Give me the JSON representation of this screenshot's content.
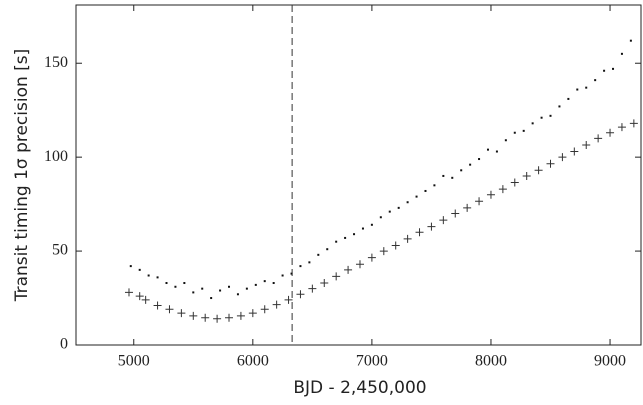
{
  "chart_data": {
    "type": "scatter",
    "xlabel": "BJD - 2,450,000",
    "ylabel": "Transit timing 1σ precision [s]",
    "xlim": [
      4515,
      9260
    ],
    "ylim": [
      0,
      181
    ],
    "xticks": [
      5000,
      6000,
      7000,
      8000,
      9000
    ],
    "yticks": [
      0,
      50,
      100,
      150
    ],
    "vline": 6330,
    "series": [
      {
        "marker": "dot",
        "color": "#111111",
        "x": [
          4975,
          5050,
          5125,
          5200,
          5275,
          5350,
          5425,
          5500,
          5575,
          5650,
          5725,
          5800,
          5875,
          5950,
          6025,
          6100,
          6175,
          6250,
          6325,
          6400,
          6475,
          6550,
          6625,
          6700,
          6775,
          6850,
          6925,
          7000,
          7075,
          7150,
          7225,
          7300,
          7375,
          7450,
          7525,
          7600,
          7675,
          7750,
          7825,
          7900,
          7975,
          8050,
          8125,
          8200,
          8275,
          8350,
          8425,
          8500,
          8575,
          8650,
          8725,
          8800,
          8875,
          8950,
          9025,
          9100,
          9175
        ],
        "values": [
          42,
          40,
          37,
          36,
          33,
          31,
          33,
          28,
          30,
          25,
          29,
          31,
          27,
          30,
          32,
          34,
          33,
          37,
          38,
          42,
          44,
          48,
          51,
          55,
          57,
          59,
          62,
          64,
          68,
          71,
          73,
          76,
          79,
          82,
          85,
          90,
          89,
          93,
          96,
          99,
          104,
          103,
          109,
          113,
          114,
          118,
          121,
          122,
          127,
          131,
          136,
          137,
          141,
          146,
          147,
          155,
          162
        ]
      },
      {
        "marker": "plus",
        "color": "#333333",
        "x": [
          4960,
          5050,
          5100,
          5200,
          5300,
          5400,
          5500,
          5600,
          5700,
          5800,
          5900,
          6000,
          6100,
          6200,
          6300,
          6400,
          6500,
          6600,
          6700,
          6800,
          6900,
          7000,
          7100,
          7200,
          7300,
          7400,
          7500,
          7600,
          7700,
          7800,
          7900,
          8000,
          8100,
          8200,
          8300,
          8400,
          8500,
          8600,
          8700,
          8800,
          8900,
          9000,
          9100,
          9200
        ],
        "values": [
          28,
          26,
          24,
          21,
          19,
          17,
          15.5,
          14.5,
          14,
          14.5,
          15.5,
          17,
          19,
          21.5,
          24,
          27,
          30,
          33,
          36.5,
          40,
          43,
          46.5,
          50,
          53,
          56.5,
          60,
          63,
          66.5,
          70,
          73,
          76.5,
          80,
          83,
          86.5,
          90,
          93,
          96.5,
          100,
          103,
          106.5,
          110,
          113,
          116,
          118
        ]
      }
    ]
  }
}
